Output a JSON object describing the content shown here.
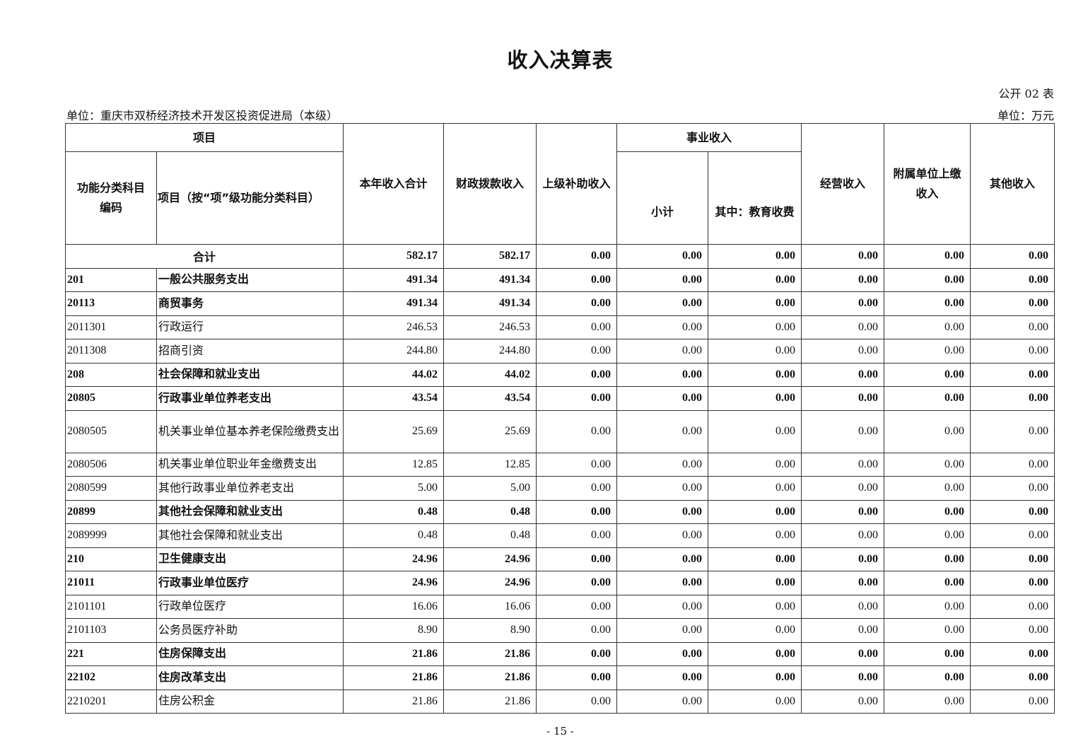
{
  "title": "收入决算表",
  "form_no": "公开 02 表",
  "unit_org": "单位：重庆市双桥经济技术开发区投资促进局（本级）",
  "unit_currency": "单位：万元",
  "headers": {
    "project": "项目",
    "code": "功能分类科目编码",
    "name": "项目（按“项”级功能分类科目）",
    "total": "本年收入合计",
    "fiscal": "财政拨款收入",
    "superior": "上级补助收入",
    "business": "事业收入",
    "subtotal": "小计",
    "education": "其中：教育收费",
    "operating": "经营收入",
    "affiliated": "附属单位上缴收入",
    "other": "其他收入"
  },
  "total_row": {
    "label": "合计",
    "values": [
      "582.17",
      "582.17",
      "0.00",
      "0.00",
      "0.00",
      "0.00",
      "0.00",
      "0.00"
    ]
  },
  "rows": [
    {
      "code": "201",
      "name": "一般公共服务支出",
      "bold": true,
      "values": [
        "491.34",
        "491.34",
        "0.00",
        "0.00",
        "0.00",
        "0.00",
        "0.00",
        "0.00"
      ]
    },
    {
      "code": "20113",
      "name": "商贸事务",
      "bold": true,
      "values": [
        "491.34",
        "491.34",
        "0.00",
        "0.00",
        "0.00",
        "0.00",
        "0.00",
        "0.00"
      ]
    },
    {
      "code": "2011301",
      "name": "行政运行",
      "bold": false,
      "values": [
        "246.53",
        "246.53",
        "0.00",
        "0.00",
        "0.00",
        "0.00",
        "0.00",
        "0.00"
      ]
    },
    {
      "code": "2011308",
      "name": "招商引资",
      "bold": false,
      "values": [
        "244.80",
        "244.80",
        "0.00",
        "0.00",
        "0.00",
        "0.00",
        "0.00",
        "0.00"
      ]
    },
    {
      "code": "208",
      "name": "社会保障和就业支出",
      "bold": true,
      "values": [
        "44.02",
        "44.02",
        "0.00",
        "0.00",
        "0.00",
        "0.00",
        "0.00",
        "0.00"
      ]
    },
    {
      "code": "20805",
      "name": "行政事业单位养老支出",
      "bold": true,
      "values": [
        "43.54",
        "43.54",
        "0.00",
        "0.00",
        "0.00",
        "0.00",
        "0.00",
        "0.00"
      ]
    },
    {
      "code": "2080505",
      "name": "机关事业单位基本养老保险缴费支出",
      "bold": false,
      "values": [
        "25.69",
        "25.69",
        "0.00",
        "0.00",
        "0.00",
        "0.00",
        "0.00",
        "0.00"
      ]
    },
    {
      "code": "2080506",
      "name": "机关事业单位职业年金缴费支出",
      "bold": false,
      "values": [
        "12.85",
        "12.85",
        "0.00",
        "0.00",
        "0.00",
        "0.00",
        "0.00",
        "0.00"
      ]
    },
    {
      "code": "2080599",
      "name": "其他行政事业单位养老支出",
      "bold": false,
      "values": [
        "5.00",
        "5.00",
        "0.00",
        "0.00",
        "0.00",
        "0.00",
        "0.00",
        "0.00"
      ]
    },
    {
      "code": "20899",
      "name": "其他社会保障和就业支出",
      "bold": true,
      "values": [
        "0.48",
        "0.48",
        "0.00",
        "0.00",
        "0.00",
        "0.00",
        "0.00",
        "0.00"
      ]
    },
    {
      "code": "2089999",
      "name": "其他社会保障和就业支出",
      "bold": false,
      "values": [
        "0.48",
        "0.48",
        "0.00",
        "0.00",
        "0.00",
        "0.00",
        "0.00",
        "0.00"
      ]
    },
    {
      "code": "210",
      "name": "卫生健康支出",
      "bold": true,
      "values": [
        "24.96",
        "24.96",
        "0.00",
        "0.00",
        "0.00",
        "0.00",
        "0.00",
        "0.00"
      ]
    },
    {
      "code": "21011",
      "name": "行政事业单位医疗",
      "bold": true,
      "values": [
        "24.96",
        "24.96",
        "0.00",
        "0.00",
        "0.00",
        "0.00",
        "0.00",
        "0.00"
      ]
    },
    {
      "code": "2101101",
      "name": "行政单位医疗",
      "bold": false,
      "values": [
        "16.06",
        "16.06",
        "0.00",
        "0.00",
        "0.00",
        "0.00",
        "0.00",
        "0.00"
      ]
    },
    {
      "code": "2101103",
      "name": "公务员医疗补助",
      "bold": false,
      "values": [
        "8.90",
        "8.90",
        "0.00",
        "0.00",
        "0.00",
        "0.00",
        "0.00",
        "0.00"
      ]
    },
    {
      "code": "221",
      "name": "住房保障支出",
      "bold": true,
      "values": [
        "21.86",
        "21.86",
        "0.00",
        "0.00",
        "0.00",
        "0.00",
        "0.00",
        "0.00"
      ]
    },
    {
      "code": "22102",
      "name": "住房改革支出",
      "bold": true,
      "values": [
        "21.86",
        "21.86",
        "0.00",
        "0.00",
        "0.00",
        "0.00",
        "0.00",
        "0.00"
      ]
    },
    {
      "code": "2210201",
      "name": "住房公积金",
      "bold": false,
      "values": [
        "21.86",
        "21.86",
        "0.00",
        "0.00",
        "0.00",
        "0.00",
        "0.00",
        "0.00"
      ]
    }
  ],
  "page_number": "- 15 -"
}
